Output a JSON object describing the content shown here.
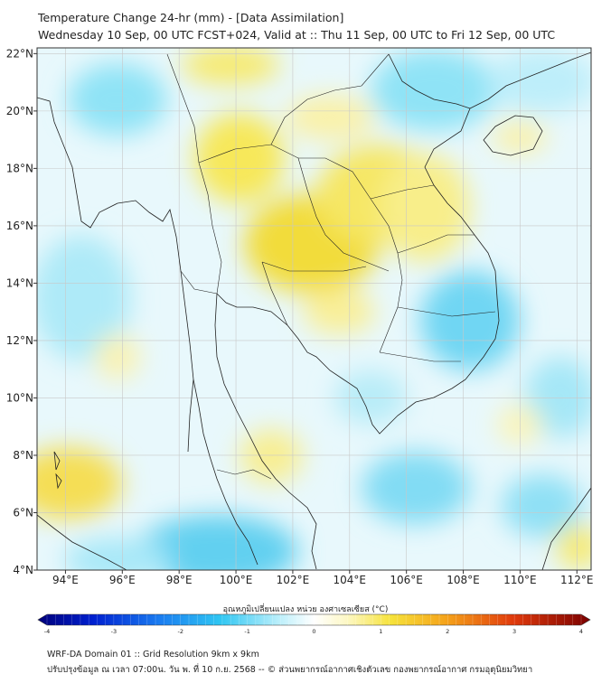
{
  "header": {
    "title_line1": "Temperature Change 24-hr (mm) - [Data Assimilation]",
    "title_line2": "Wednesday 10 Sep, 00 UTC FCST+024, Valid at :: Thu 11 Sep, 00 UTC to Fri 12 Sep, 00 UTC"
  },
  "map": {
    "lon_ticks": [
      "94°E",
      "96°E",
      "98°E",
      "100°E",
      "102°E",
      "104°E",
      "106°E",
      "108°E",
      "110°E",
      "112°E"
    ],
    "lat_ticks": [
      "22°N",
      "20°N",
      "18°N",
      "16°N",
      "14°N",
      "12°N",
      "10°N",
      "8°N",
      "6°N",
      "4°N"
    ],
    "lon_range": [
      93,
      112.5
    ],
    "lat_range": [
      4,
      22.2
    ]
  },
  "colorbar": {
    "label": "อุณหภูมิเปลี่ยนแปลง หน่วย องศาเซลเซียส (°C)",
    "ticks": [
      "-4",
      "-3",
      "-2",
      "-1",
      "0",
      "1",
      "2",
      "3",
      "4"
    ],
    "range": [
      -4,
      4
    ]
  },
  "footer": {
    "line1": "WRF-DA Domain 01 :: Grid Resolution 9km x 9km",
    "line2": "ปรับปรุงข้อมูล ณ เวลา 07:00น. วัน พ. ที่ 10 ก.ย. 2568 -- © ส่วนพยากรณ์อากาศเชิงตัวเลข กองพยากรณ์อากาศ กรมอุตุนิยมวิทยา"
  }
}
